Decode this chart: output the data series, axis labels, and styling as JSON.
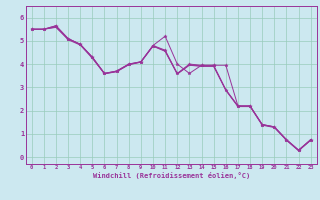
{
  "xlabel": "Windchill (Refroidissement éolien,°C)",
  "background_color": "#cce8f0",
  "grid_color": "#99ccbb",
  "line_color": "#993399",
  "x_ticks": [
    0,
    1,
    2,
    3,
    4,
    5,
    6,
    7,
    8,
    9,
    10,
    11,
    12,
    13,
    14,
    15,
    16,
    17,
    18,
    19,
    20,
    21,
    22,
    23
  ],
  "y_ticks": [
    0,
    1,
    2,
    3,
    4,
    5,
    6
  ],
  "xlim": [
    -0.5,
    23.5
  ],
  "ylim": [
    -0.3,
    6.5
  ],
  "series_with_markers": [
    [
      5.5,
      5.5,
      5.65,
      5.1,
      4.85,
      4.3,
      3.6,
      3.7,
      4.0,
      4.1,
      4.8,
      4.6,
      3.6,
      4.0,
      3.95,
      3.95,
      2.9,
      2.2,
      2.2,
      1.4,
      1.3,
      0.75,
      0.3,
      0.75
    ],
    [
      5.5,
      5.5,
      5.65,
      5.1,
      4.85,
      4.3,
      3.6,
      3.7,
      4.0,
      4.1,
      4.8,
      5.2,
      4.0,
      3.6,
      3.95,
      3.95,
      3.95,
      2.2,
      2.2,
      1.4,
      1.3,
      0.75,
      0.3,
      0.75
    ]
  ],
  "series_no_markers": [
    [
      5.5,
      5.5,
      5.6,
      5.05,
      4.82,
      4.25,
      3.58,
      3.67,
      3.97,
      4.08,
      4.77,
      4.55,
      3.57,
      3.95,
      3.9,
      3.9,
      2.87,
      2.17,
      2.17,
      1.37,
      1.27,
      0.72,
      0.27,
      0.72
    ],
    [
      5.5,
      5.5,
      5.58,
      5.08,
      4.86,
      4.28,
      3.59,
      3.68,
      3.98,
      4.09,
      4.78,
      4.57,
      3.58,
      3.97,
      3.92,
      3.92,
      2.89,
      2.19,
      2.19,
      1.39,
      1.29,
      0.73,
      0.28,
      0.73
    ]
  ]
}
